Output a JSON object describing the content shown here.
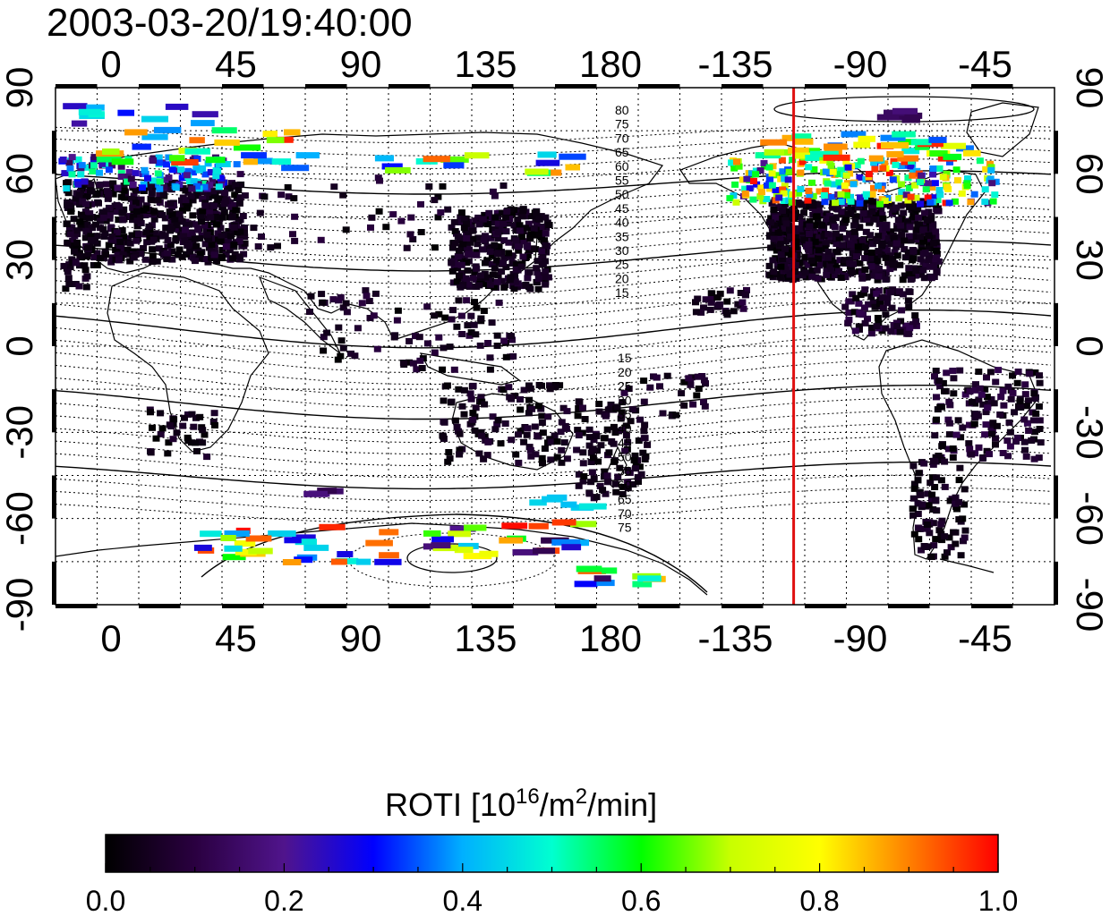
{
  "timestamp": "2003-03-20/19:40:00",
  "longitude_ticks": [
    "0",
    "45",
    "90",
    "135",
    "180",
    "-135",
    "-90",
    "-45"
  ],
  "latitude_ticks": [
    "90",
    "60",
    "30",
    "0",
    "-30",
    "-60",
    "-90"
  ],
  "north_contour_labels": [
    "80",
    "75",
    "70",
    "65",
    "60",
    "55",
    "50",
    "45",
    "40",
    "35",
    "30",
    "25",
    "20",
    "15"
  ],
  "south_contour_labels": [
    "15",
    "20",
    "25",
    "30",
    "35",
    "40",
    "45",
    "50",
    "55",
    "60",
    "65",
    "70",
    "75"
  ],
  "marker_line": {
    "longitude": -114,
    "color": "#e01010"
  },
  "colorbar": {
    "title_prefix": "ROTI  [10",
    "title_sup1": "16",
    "title_mid": "/m",
    "title_sup2": "2",
    "title_suffix": "/min]",
    "min": 0.0,
    "max": 1.0,
    "tick_labels": [
      "0.0",
      "0.2",
      "0.4",
      "0.6",
      "0.8",
      "1.0"
    ],
    "colors": [
      "#000000",
      "#2a0040",
      "#50148c",
      "#0000ff",
      "#00b0ff",
      "#00ffd0",
      "#00ff00",
      "#c8ff00",
      "#ffff00",
      "#ff8000",
      "#ff0000"
    ]
  }
}
